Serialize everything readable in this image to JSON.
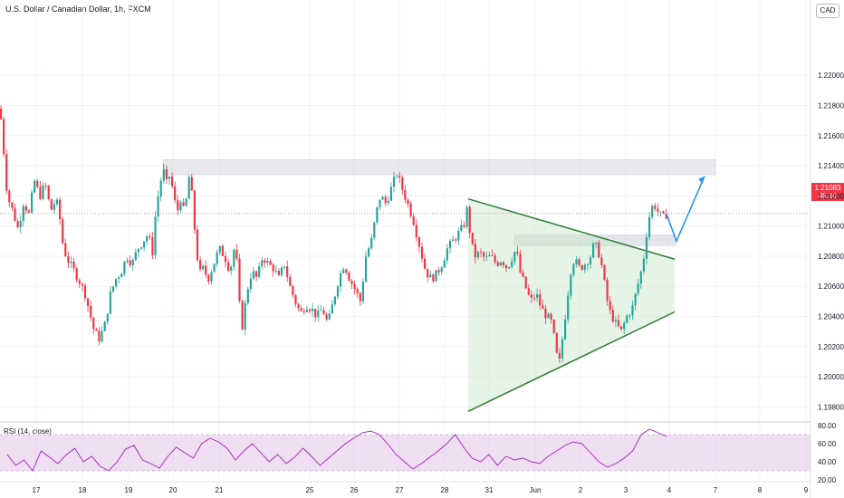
{
  "title": "U.S. Dollar / Canadian Dollar, 1h, FXCM",
  "currency": "CAD",
  "last_price": {
    "value": "1.21083",
    "countdown": "45:10"
  },
  "rsi_title": "RSI (14, close)",
  "colors": {
    "up": "#26a69a",
    "down": "#f23645",
    "triangle": "#2e7d32",
    "triangle_fill": "#c8e6c9",
    "zone": "#d1d4dc",
    "projection": "#2196f3",
    "rsi_line": "#9c27b0",
    "rsi_band": "#e1bee7"
  },
  "chart_data": [
    {
      "type": "candlestick",
      "title": "U.S. Dollar / Canadian Dollar, 1h, FXCM",
      "x_ticks": [
        "17",
        "18",
        "19",
        "20",
        "21",
        "25",
        "26",
        "27",
        "28",
        "31",
        "Jun",
        "2",
        "3",
        "4",
        "7",
        "8",
        "9"
      ],
      "y_ticks": [
        "1.22000",
        "1.21800",
        "1.21600",
        "1.21400",
        "1.21200",
        "1.21000",
        "1.20800",
        "1.20600",
        "1.20400",
        "1.20200",
        "1.20000",
        "1.19800"
      ],
      "ylim": [
        1.197,
        1.225
      ],
      "close_path": [
        [
          0,
          1.2178
        ],
        [
          4,
          1.215
        ],
        [
          8,
          1.212
        ],
        [
          14,
          1.211
        ],
        [
          20,
          1.2098
        ],
        [
          26,
          1.2116
        ],
        [
          32,
          1.2108
        ],
        [
          38,
          1.213
        ],
        [
          44,
          1.212
        ],
        [
          50,
          1.2128
        ],
        [
          56,
          1.211
        ],
        [
          62,
          1.2118
        ],
        [
          66,
          1.2105
        ],
        [
          70,
          1.2085
        ],
        [
          76,
          1.2076
        ],
        [
          82,
          1.207
        ],
        [
          88,
          1.2063
        ],
        [
          94,
          1.2055
        ],
        [
          98,
          1.2045
        ],
        [
          104,
          1.203
        ],
        [
          110,
          1.2025
        ],
        [
          116,
          1.2035
        ],
        [
          122,
          1.2055
        ],
        [
          128,
          1.2065
        ],
        [
          134,
          1.207
        ],
        [
          140,
          1.208
        ],
        [
          146,
          1.2075
        ],
        [
          152,
          1.2085
        ],
        [
          158,
          1.209
        ],
        [
          164,
          1.2095
        ],
        [
          168,
          1.208
        ],
        [
          172,
          1.211
        ],
        [
          176,
          1.2125
        ],
        [
          180,
          1.2138
        ],
        [
          184,
          1.2128
        ],
        [
          188,
          1.2135
        ],
        [
          192,
          1.2118
        ],
        [
          196,
          1.211
        ],
        [
          200,
          1.212
        ],
        [
          204,
          1.2105
        ],
        [
          208,
          1.2135
        ],
        [
          212,
          1.212
        ],
        [
          216,
          1.209
        ],
        [
          220,
          1.2068
        ],
        [
          224,
          1.2072
        ],
        [
          230,
          1.2065
        ],
        [
          236,
          1.2075
        ],
        [
          242,
          1.2085
        ],
        [
          248,
          1.208
        ],
        [
          254,
          1.207
        ],
        [
          260,
          1.209
        ],
        [
          264,
          1.205
        ],
        [
          268,
          1.2032
        ],
        [
          272,
          1.2055
        ],
        [
          278,
          1.207
        ],
        [
          284,
          1.2065
        ],
        [
          290,
          1.208
        ],
        [
          296,
          1.2075
        ],
        [
          302,
          1.2072
        ],
        [
          308,
          1.2065
        ],
        [
          314,
          1.2075
        ],
        [
          320,
          1.206
        ],
        [
          326,
          1.205
        ],
        [
          332,
          1.2042
        ],
        [
          338,
          1.2048
        ],
        [
          344,
          1.2045
        ],
        [
          350,
          1.204
        ],
        [
          356,
          1.2045
        ],
        [
          362,
          1.2035
        ],
        [
          368,
          1.205
        ],
        [
          374,
          1.2065
        ],
        [
          380,
          1.2075
        ],
        [
          386,
          1.2065
        ],
        [
          392,
          1.2058
        ],
        [
          398,
          1.205
        ],
        [
          404,
          1.208
        ],
        [
          410,
          1.209
        ],
        [
          416,
          1.211
        ],
        [
          420,
          1.212
        ],
        [
          426,
          1.2115
        ],
        [
          432,
          1.2125
        ],
        [
          438,
          1.2135
        ],
        [
          444,
          1.2125
        ],
        [
          450,
          1.2115
        ],
        [
          456,
          1.2105
        ],
        [
          460,
          1.2095
        ],
        [
          466,
          1.208
        ],
        [
          470,
          1.207
        ],
        [
          476,
          1.2065
        ],
        [
          482,
          1.2068
        ],
        [
          488,
          1.2075
        ],
        [
          494,
          1.2085
        ],
        [
          500,
          1.209
        ],
        [
          506,
          1.2095
        ],
        [
          512,
          1.21
        ],
        [
          516,
          1.2112
        ],
        [
          520,
          1.209
        ],
        [
          524,
          1.208
        ],
        [
          530,
          1.2082
        ],
        [
          536,
          1.2078
        ],
        [
          542,
          1.208
        ],
        [
          548,
          1.2075
        ],
        [
          554,
          1.2078
        ],
        [
          560,
          1.2072
        ],
        [
          566,
          1.208
        ],
        [
          570,
          1.2085
        ],
        [
          574,
          1.207
        ],
        [
          580,
          1.206
        ],
        [
          586,
          1.205
        ],
        [
          592,
          1.2055
        ],
        [
          598,
          1.2045
        ],
        [
          604,
          1.204
        ],
        [
          610,
          1.2035
        ],
        [
          614,
          1.2015
        ],
        [
          618,
          1.201
        ],
        [
          622,
          1.203
        ],
        [
          626,
          1.205
        ],
        [
          630,
          1.207
        ],
        [
          634,
          1.2078
        ],
        [
          640,
          1.2072
        ],
        [
          646,
          1.2075
        ],
        [
          652,
          1.208
        ],
        [
          656,
          1.2088
        ],
        [
          660,
          1.2085
        ],
        [
          664,
          1.2075
        ],
        [
          668,
          1.206
        ],
        [
          672,
          1.2045
        ],
        [
          676,
          1.204
        ],
        [
          680,
          1.2035
        ],
        [
          686,
          1.203
        ],
        [
          692,
          1.204
        ],
        [
          698,
          1.2045
        ],
        [
          702,
          1.2055
        ],
        [
          706,
          1.2065
        ],
        [
          710,
          1.2075
        ],
        [
          714,
          1.2095
        ],
        [
          718,
          1.211
        ],
        [
          722,
          1.2115
        ],
        [
          726,
          1.211
        ],
        [
          732,
          1.2105
        ],
        [
          736,
          1.2108
        ]
      ],
      "resistance_zone": {
        "x": [
          180,
          790
        ],
        "y": [
          1.2134,
          1.2144
        ]
      },
      "minor_zone": {
        "x": [
          568,
          746
        ],
        "y": [
          1.2087,
          1.2094
        ]
      },
      "triangle": {
        "apex_top": [
          517,
          1.2118
        ],
        "upper_end": [
          745,
          1.2078
        ],
        "lower_start": [
          517,
          1.1977
        ],
        "lower_end": [
          745,
          1.2043
        ]
      },
      "projection": [
        [
          736,
          1.2108
        ],
        [
          747,
          1.209
        ],
        [
          778,
          1.2133
        ]
      ],
      "current_price_line": 1.21083
    },
    {
      "type": "line",
      "title": "RSI (14, close)",
      "y_ticks": [
        "80.00",
        "60.00",
        "40.00",
        "20.00"
      ],
      "ylim": [
        20,
        80
      ],
      "band": [
        30,
        70
      ],
      "values": [
        48,
        36,
        42,
        30,
        52,
        45,
        38,
        48,
        55,
        40,
        46,
        35,
        30,
        40,
        54,
        58,
        42,
        38,
        33,
        46,
        56,
        50,
        44,
        60,
        66,
        62,
        55,
        42,
        52,
        60,
        50,
        40,
        48,
        38,
        45,
        55,
        46,
        36,
        44,
        52,
        60,
        66,
        72,
        74,
        70,
        60,
        48,
        40,
        32,
        38,
        45,
        52,
        60,
        70,
        56,
        44,
        40,
        48,
        36,
        46,
        42,
        44,
        40,
        38,
        46,
        52,
        58,
        62,
        60,
        50,
        40,
        34,
        38,
        44,
        52,
        70,
        76,
        72,
        68
      ]
    }
  ]
}
